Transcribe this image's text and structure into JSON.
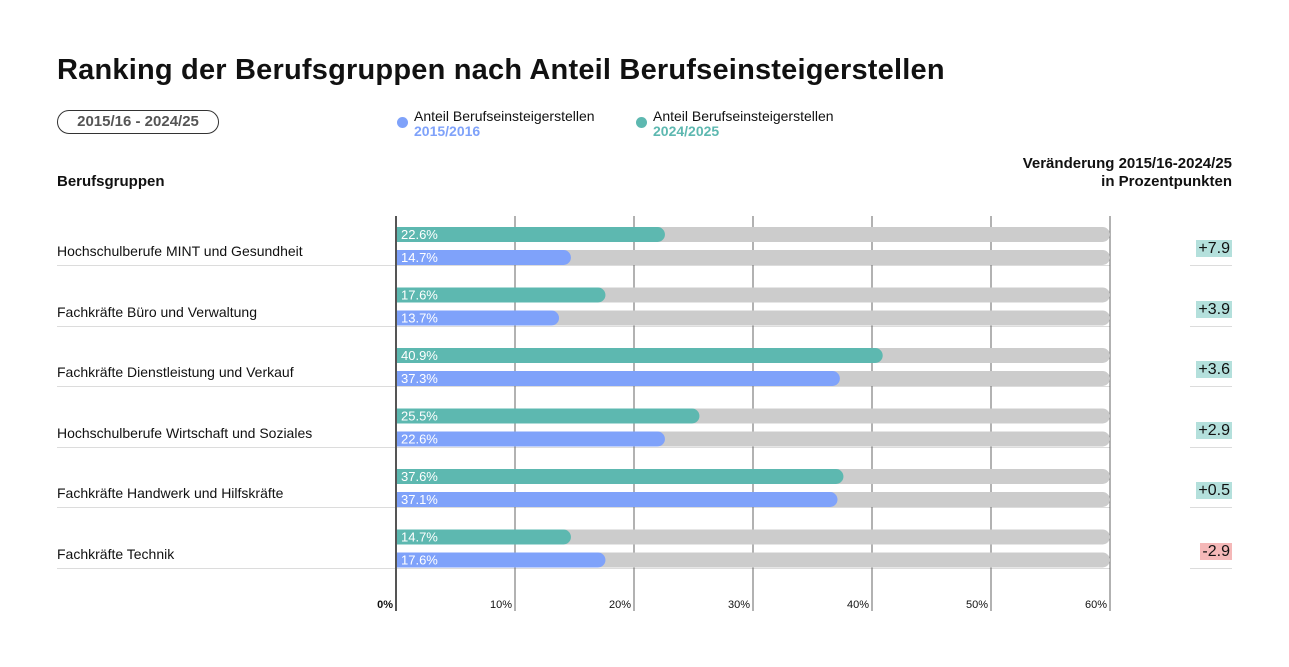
{
  "title": "Ranking der Berufsgruppen nach Anteil Berufseinsteigerstellen",
  "period_badge": "2015/16 - 2024/25",
  "legend": [
    {
      "label": "Anteil Berufseinsteigerstellen",
      "year": "2015/2016",
      "color": "#7fa2fa"
    },
    {
      "label": "Anteil Berufseinsteigerstellen",
      "year": "2024/2025",
      "color": "#5db8b0"
    }
  ],
  "header_left": "Berufsgruppen",
  "header_right_line1": "Veränderung 2015/16-2024/25",
  "header_right_line2": "in Prozentpunkten",
  "colors": {
    "bar_2015": "#7fa2fa",
    "bar_2024": "#5db8b0",
    "track": "#cccccc",
    "pos_change_bg": "#b4e0dc",
    "neg_change_bg": "#f5b8b8"
  },
  "chart_data": {
    "type": "bar",
    "orientation": "horizontal",
    "title": "Ranking der Berufsgruppen nach Anteil Berufseinsteigerstellen",
    "categories": [
      "Hochschulberufe MINT und Gesundheit",
      "Fachkräfte Büro und Verwaltung",
      "Fachkräfte Dienstleistung und Verkauf",
      "Hochschulberufe Wirtschaft und Soziales",
      "Fachkräfte Handwerk und Hilfskräfte",
      "Fachkräfte Technik"
    ],
    "series": [
      {
        "name": "Anteil Berufseinsteigerstellen 2024/2025",
        "values": [
          22.6,
          17.6,
          40.9,
          25.5,
          37.6,
          14.7
        ],
        "labels": [
          "22.6%",
          "17.6%",
          "40.9%",
          "25.5%",
          "37.6%",
          "14.7%"
        ]
      },
      {
        "name": "Anteil Berufseinsteigerstellen 2015/2016",
        "values": [
          14.7,
          13.7,
          37.3,
          22.6,
          37.1,
          17.6
        ],
        "labels": [
          "14.7%",
          "13.7%",
          "37.3%",
          "22.6%",
          "37.1%",
          "17.6%"
        ]
      }
    ],
    "changes": [
      "+7.9",
      "+3.9",
      "+3.6",
      "+2.9",
      "+0.5",
      "-2.9"
    ],
    "change_values": [
      7.9,
      3.9,
      3.6,
      2.9,
      0.5,
      -2.9
    ],
    "xlim": [
      0,
      60
    ],
    "xticks": [
      "0%",
      "10%",
      "20%",
      "30%",
      "40%",
      "50%",
      "60%"
    ],
    "xlabel": "",
    "ylabel": "Berufsgruppen",
    "grid": true,
    "legend_position": "top"
  }
}
